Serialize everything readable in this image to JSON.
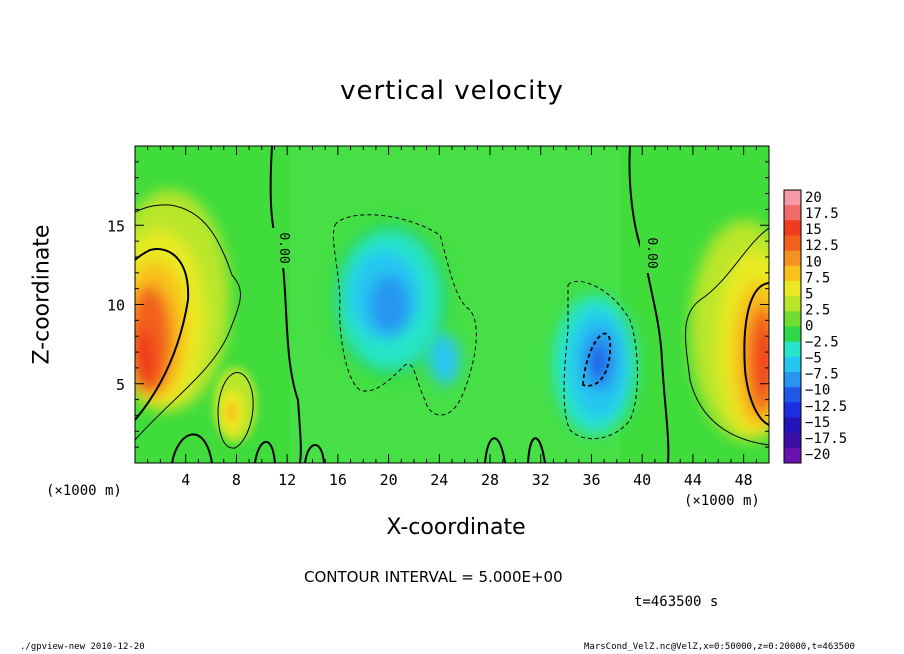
{
  "chart_data": {
    "type": "heatmap",
    "title": "vertical velocity",
    "xlabel": "X-coordinate",
    "ylabel": "Z-coordinate",
    "x_unit_left": "(×1000 m)",
    "x_unit_right": "(×1000 m)",
    "xlim": [
      0,
      50
    ],
    "ylim": [
      0,
      20
    ],
    "x_ticks": [
      4,
      8,
      12,
      16,
      20,
      24,
      28,
      32,
      36,
      40,
      44,
      48
    ],
    "x_tick_labels": [
      "4",
      "8",
      "12",
      "16",
      "20",
      "24",
      "28",
      "32",
      "36",
      "40",
      "44",
      "48"
    ],
    "y_ticks": [
      5,
      10,
      15
    ],
    "y_tick_labels": [
      "5",
      "10",
      "15"
    ],
    "colorbar": {
      "levels": [
        20,
        17.5,
        15,
        12.5,
        10,
        7.5,
        5,
        2.5,
        0,
        -2.5,
        -5,
        -7.5,
        -10,
        -12.5,
        -15,
        -17.5,
        -20
      ],
      "labels": [
        "20",
        "17.5",
        "15",
        "12.5",
        "10",
        "7.5",
        "5",
        "2.5",
        "0",
        "−2.5",
        "−5",
        "−7.5",
        "−10",
        "−12.5",
        "−15",
        "−17.5",
        "−20"
      ],
      "colors": [
        "#f59aa6",
        "#f26a6a",
        "#ef3b1e",
        "#f2601b",
        "#f59320",
        "#f8c11e",
        "#e9ea24",
        "#b9e629",
        "#6fde2f",
        "#2ed84a",
        "#26e5c8",
        "#27c6f2",
        "#2796f0",
        "#2058e6",
        "#1d2ee0",
        "#2214b8",
        "#3b0ea6",
        "#6a12b0"
      ]
    },
    "contour_interval": "CONTOUR INTERVAL = 5.000E+00",
    "contour_labels": [
      "0.00",
      "0.00"
    ],
    "features": [
      {
        "name": "updraft-left",
        "x": 1.2,
        "z": 7.5,
        "value": 13
      },
      {
        "name": "updraft-right",
        "x": 49.2,
        "z": 7.0,
        "value": 13
      },
      {
        "name": "updraft-small",
        "x": 7.5,
        "z": 3.5,
        "value": 8
      },
      {
        "name": "downdraft-center",
        "x": 20.5,
        "z": 10.0,
        "value": -8
      },
      {
        "name": "downdraft-right",
        "x": 36.5,
        "z": 6.5,
        "value": -10
      }
    ]
  },
  "annotations": {
    "time": "t=463500 s",
    "footer_left": "./gpview-new  2010-12-20",
    "footer_right": "MarsCond_VelZ.nc@VelZ,x=0:50000,z=0:20000,t=463500"
  }
}
